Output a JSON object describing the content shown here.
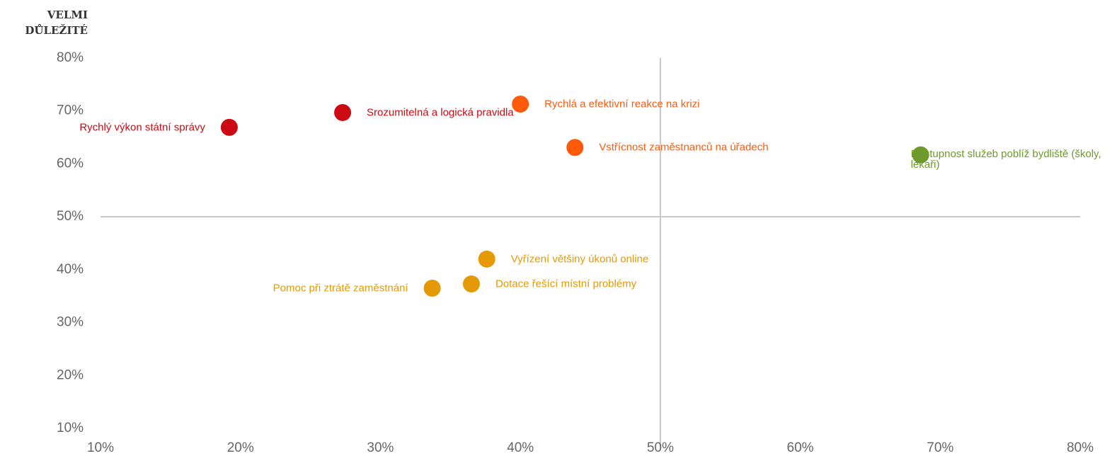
{
  "chart_data": {
    "type": "scatter",
    "annotation": "VELMI DŮLEŽITÉ",
    "labels": [
      "Rychlý výkon státní správy",
      "Srozumitelná a logická pravidla",
      "Rychlá a efektivní reakce na krizi",
      "Vstřícnost zaměstnanců na úřadech",
      "Dostupnost služeb poblíž bydliště (školy, lékaři)",
      "Vyřízení většiny úkonů online",
      "Dotace řešící místní problémy",
      "Pomoc při ztrátě zaměstnání"
    ],
    "x": [
      19.2,
      27.3,
      40.0,
      43.9,
      68.6,
      37.6,
      36.5,
      33.7
    ],
    "y": [
      66.9,
      69.7,
      71.3,
      63.1,
      61.7,
      42.0,
      37.3,
      36.5
    ],
    "colors": [
      "#cc0a14",
      "#cc0a14",
      "#ff5a0a",
      "#ff5a0a",
      "#6e9a2c",
      "#e39a06",
      "#e39a06",
      "#e39a06"
    ],
    "xlim": [
      10,
      80
    ],
    "ylim": [
      10,
      80
    ],
    "xticks": [
      {
        "value": 10,
        "label": "10%"
      },
      {
        "value": 20,
        "label": "20%"
      },
      {
        "value": 30,
        "label": "30%"
      },
      {
        "value": 40,
        "label": "40%"
      },
      {
        "value": 50,
        "label": "50%"
      },
      {
        "value": 60,
        "label": "60%"
      },
      {
        "value": 70,
        "label": "70%"
      },
      {
        "value": 80,
        "label": "80%"
      }
    ],
    "yticks": [
      {
        "value": 10,
        "label": "10%"
      },
      {
        "value": 20,
        "label": "20%"
      },
      {
        "value": 30,
        "label": "30%"
      },
      {
        "value": 40,
        "label": "40%"
      },
      {
        "value": 50,
        "label": "50%"
      },
      {
        "value": 60,
        "label": "60%"
      },
      {
        "value": 70,
        "label": "70%"
      },
      {
        "value": 80,
        "label": "80%"
      }
    ]
  }
}
